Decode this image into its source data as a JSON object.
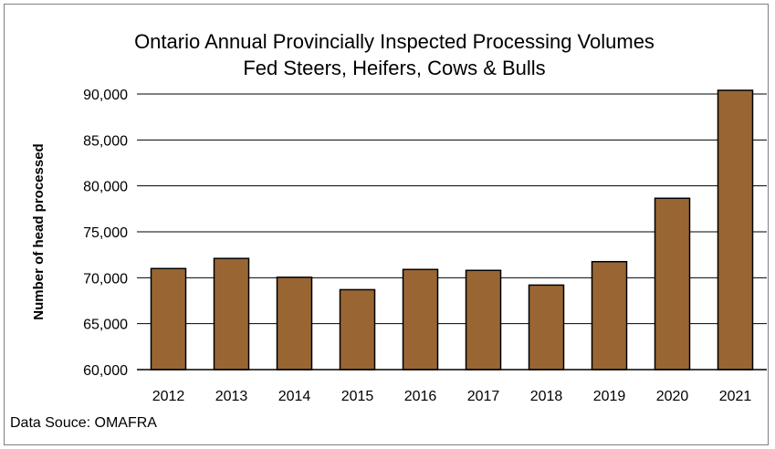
{
  "chart_data": {
    "type": "bar",
    "title_lines": [
      "Ontario Annual Provincially Inspected Processing Volumes",
      "Fed Steers, Heifers, Cows & Bulls"
    ],
    "xlabel": "",
    "ylabel": "Number of head processed",
    "categories": [
      "2012",
      "2013",
      "2014",
      "2015",
      "2016",
      "2017",
      "2018",
      "2019",
      "2020",
      "2021"
    ],
    "values": [
      71000,
      72100,
      70050,
      68700,
      70900,
      70800,
      69200,
      71750,
      78650,
      90400
    ],
    "ylim": [
      60000,
      90000
    ],
    "yticks": [
      60000,
      65000,
      70000,
      75000,
      80000,
      85000,
      90000
    ],
    "ytick_labels": [
      "60,000",
      "65,000",
      "70,000",
      "75,000",
      "80,000",
      "85,000",
      "90,000"
    ],
    "grid": true,
    "legend": "none",
    "colors": {
      "bar_fill": "#996633",
      "bar_stroke": "#000000",
      "grid": "#000000"
    }
  },
  "source_note": "Data Souce: OMAFRA"
}
